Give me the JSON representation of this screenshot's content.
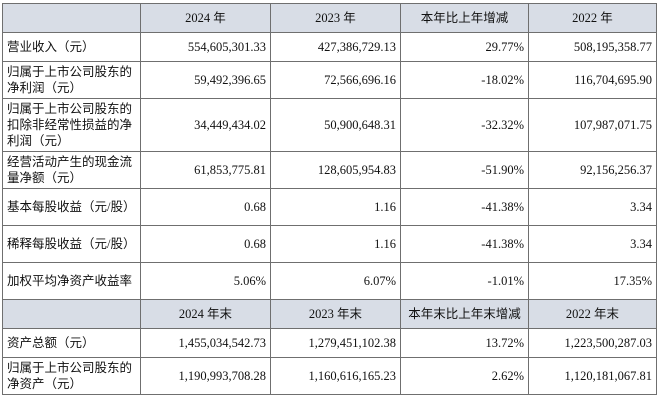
{
  "table": {
    "header1": [
      "",
      "2024 年",
      "2023 年",
      "本年比上年增减",
      "2022 年"
    ],
    "rows1": [
      [
        "营业收入（元）",
        "554,605,301.33",
        "427,386,729.13",
        "29.77%",
        "508,195,358.77"
      ],
      [
        "归属于上市公司股东的净利润（元）",
        "59,492,396.65",
        "72,566,696.16",
        "-18.02%",
        "116,704,695.90"
      ],
      [
        "归属于上市公司股东的扣除非经常性损益的净利润（元）",
        "34,449,434.02",
        "50,900,648.31",
        "-32.32%",
        "107,987,071.75"
      ],
      [
        "经营活动产生的现金流量净额（元）",
        "61,853,775.81",
        "128,605,954.83",
        "-51.90%",
        "92,156,256.37"
      ],
      [
        "基本每股收益（元/股）",
        "0.68",
        "1.16",
        "-41.38%",
        "3.34"
      ],
      [
        "稀释每股收益（元/股）",
        "0.68",
        "1.16",
        "-41.38%",
        "3.34"
      ],
      [
        "加权平均净资产收益率",
        "5.06%",
        "6.07%",
        "-1.01%",
        "17.35%"
      ]
    ],
    "header2": [
      "",
      "2024 年末",
      "2023 年末",
      "本年末比上年末增减",
      "2022 年末"
    ],
    "rows2": [
      [
        "资产总额（元）",
        "1,455,034,542.73",
        "1,279,451,102.38",
        "13.72%",
        "1,223,500,287.03"
      ],
      [
        "归属于上市公司股东的净资产（元）",
        "1,190,993,708.28",
        "1,160,616,165.23",
        "2.62%",
        "1,120,181,067.81"
      ]
    ]
  }
}
